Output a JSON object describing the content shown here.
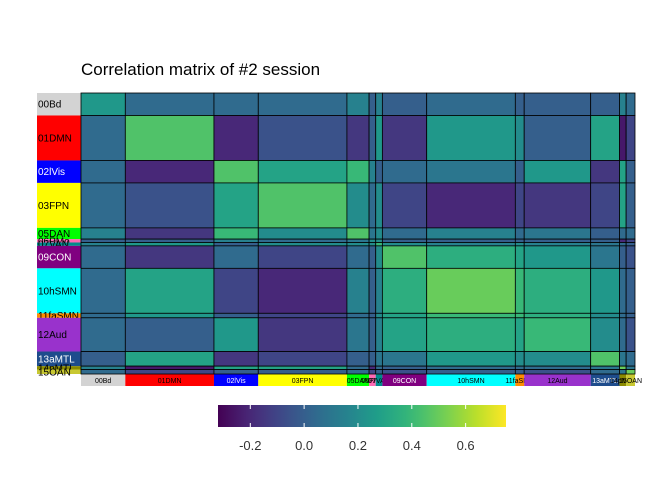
{
  "chart_data": {
    "type": "heatmap",
    "title": "Correlation matrix of #2 session",
    "networks": [
      {
        "label": "00Bd",
        "color": "#d3d3d3",
        "text_color": "#000000"
      },
      {
        "label": "01DMN",
        "color": "#ff0000",
        "text_color": "#000000"
      },
      {
        "label": "02lVis",
        "color": "#0000ff",
        "text_color": "#ffffff"
      },
      {
        "label": "03FPN",
        "color": "#ffff00",
        "text_color": "#000000"
      },
      {
        "label": "05DAN",
        "color": "#00ff00",
        "text_color": "#000000"
      },
      {
        "label": "06PMo",
        "color": "#ff69b4",
        "text_color": "#000000"
      },
      {
        "label": "07VAN",
        "color": "#008b8b",
        "text_color": "#000000"
      },
      {
        "label": "09CON",
        "color": "#800080",
        "text_color": "#ffffff"
      },
      {
        "label": "10hSMN",
        "color": "#00ffff",
        "text_color": "#000000"
      },
      {
        "label": "11faSMN",
        "color": "#ff8c00",
        "text_color": "#000000"
      },
      {
        "label": "12Aud",
        "color": "#9932cc",
        "text_color": "#000000"
      },
      {
        "label": "13aMTL",
        "color": "#1e4c8c",
        "text_color": "#ffffff"
      },
      {
        "label": "14pMTL",
        "color": "#8b8b00",
        "text_color": "#000000"
      },
      {
        "label": "15OAN",
        "color": "#c8c832",
        "text_color": "#000000"
      }
    ],
    "row_labels": [
      "00Bd",
      "01DMN",
      "02lVis",
      "03FPN",
      "05DAN",
      "06PMo",
      "07VAN",
      "09CON",
      "10hSMN",
      "11faSMN",
      "12Aud",
      "13aMTL",
      "14pMTL",
      "15OAN"
    ],
    "col_labels": [
      "00Bd",
      "01DMN",
      "02lVis",
      "03FPN",
      "05DAN",
      "06PMo",
      "07VAN",
      "09CON",
      "10hSMN",
      "11faSMN",
      "12Aud",
      "13aMTL",
      "14pMTL",
      "15OAN"
    ],
    "sizes": [
      2,
      4,
      2,
      4,
      1,
      0.3,
      0.3,
      2,
      4,
      0.4,
      3,
      1.3,
      0.3,
      0.4
    ],
    "values": [
      [
        0.25,
        0.05,
        0.05,
        0.05,
        0.15,
        0.0,
        0.15,
        0.0,
        0.05,
        0.0,
        0.0,
        0.0,
        0.15,
        0.05
      ],
      [
        0.05,
        0.45,
        -0.2,
        -0.05,
        -0.15,
        0.0,
        0.25,
        -0.15,
        0.25,
        0.2,
        0.0,
        0.3,
        -0.25,
        -0.1
      ],
      [
        0.05,
        -0.2,
        0.45,
        0.3,
        0.4,
        0.15,
        0.0,
        0.05,
        0.1,
        0.0,
        0.25,
        -0.15,
        0.3,
        0.0
      ],
      [
        0.05,
        -0.05,
        0.3,
        0.45,
        0.2,
        0.05,
        0.2,
        -0.1,
        -0.2,
        -0.1,
        -0.15,
        -0.1,
        0.3,
        0.0
      ],
      [
        0.15,
        -0.15,
        0.4,
        0.2,
        0.45,
        0.1,
        0.2,
        0.05,
        0.15,
        0.05,
        0.1,
        0.0,
        0.05,
        0.05
      ],
      [
        0.0,
        0.0,
        0.15,
        0.05,
        0.1,
        0.2,
        0.2,
        0.0,
        0.0,
        0.0,
        0.0,
        0.0,
        -0.2,
        -0.1
      ],
      [
        0.15,
        0.25,
        0.0,
        0.2,
        0.2,
        0.2,
        0.4,
        0.2,
        0.15,
        0.2,
        0.15,
        0.1,
        0.05,
        0.0
      ],
      [
        0.05,
        -0.15,
        0.05,
        -0.1,
        0.05,
        0.0,
        0.2,
        0.45,
        0.35,
        0.3,
        0.25,
        0.1,
        0.0,
        -0.05
      ],
      [
        0.05,
        0.3,
        -0.1,
        -0.2,
        0.15,
        0.0,
        0.15,
        0.35,
        0.5,
        0.4,
        0.35,
        0.25,
        0.05,
        0.0
      ],
      [
        0.05,
        0.25,
        0.0,
        -0.1,
        0.05,
        0.0,
        0.2,
        0.3,
        0.4,
        0.4,
        0.35,
        0.2,
        0.05,
        0.0
      ],
      [
        0.05,
        0.0,
        0.25,
        -0.15,
        0.1,
        0.0,
        0.15,
        0.3,
        0.35,
        0.3,
        0.4,
        0.2,
        0.05,
        -0.05
      ],
      [
        0.0,
        0.3,
        -0.15,
        -0.1,
        0.0,
        0.0,
        0.1,
        0.1,
        0.25,
        0.2,
        0.2,
        0.45,
        0.1,
        0.05
      ],
      [
        0.15,
        -0.25,
        0.3,
        0.3,
        0.05,
        -0.2,
        0.05,
        0.0,
        0.05,
        0.05,
        0.05,
        0.1,
        0.5,
        0.1
      ],
      [
        0.05,
        -0.1,
        0.0,
        0.0,
        0.05,
        -0.1,
        0.0,
        -0.05,
        0.0,
        0.0,
        -0.05,
        0.05,
        0.1,
        0.5
      ]
    ],
    "colorbar": {
      "range": [
        -0.32,
        0.75
      ],
      "ticks": [
        -0.2,
        0.0,
        0.2,
        0.4,
        0.6
      ],
      "tick_labels": [
        "-0.2",
        "0.0",
        "0.2",
        "0.4",
        "0.6"
      ],
      "colormap": "viridis"
    },
    "legend": "bottom"
  }
}
